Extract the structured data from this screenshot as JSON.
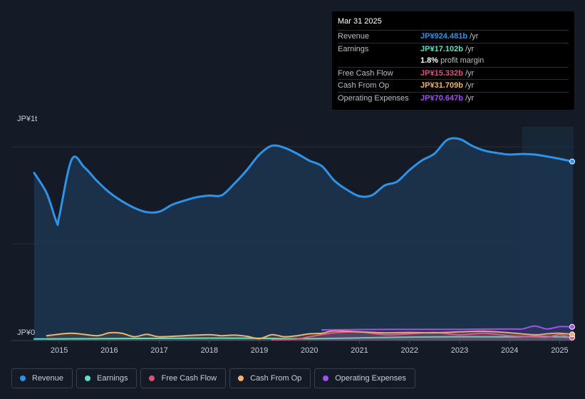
{
  "tooltip": {
    "date": "Mar 31 2025",
    "rows": [
      {
        "label": "Revenue",
        "value": "JP¥924.481b",
        "unit": "/yr",
        "color": "#2e93e8"
      },
      {
        "label": "Earnings",
        "value": "JP¥17.102b",
        "unit": "/yr",
        "color": "#5ce0c9"
      },
      {
        "label": "",
        "value": "1.8%",
        "unit": "profit margin",
        "color": "#ffffff"
      },
      {
        "label": "Free Cash Flow",
        "value": "JP¥15.332b",
        "unit": "/yr",
        "color": "#e0507f"
      },
      {
        "label": "Cash From Op",
        "value": "JP¥31.709b",
        "unit": "/yr",
        "color": "#f0b46a"
      },
      {
        "label": "Operating Expenses",
        "value": "JP¥70.647b",
        "unit": "/yr",
        "color": "#a251e8"
      }
    ]
  },
  "legend": [
    {
      "label": "Revenue",
      "color": "#2e93e8"
    },
    {
      "label": "Earnings",
      "color": "#5ce0c9"
    },
    {
      "label": "Free Cash Flow",
      "color": "#e0507f"
    },
    {
      "label": "Cash From Op",
      "color": "#f0b46a"
    },
    {
      "label": "Operating Expenses",
      "color": "#a251e8"
    }
  ],
  "chart_data": {
    "type": "area",
    "title": "",
    "ylabel_top": "JP¥1t",
    "ylabel_bottom": "JP¥0",
    "ylim": [
      0,
      1000
    ],
    "units": "JP¥ billions",
    "x_ticks": [
      "2015",
      "2016",
      "2017",
      "2018",
      "2019",
      "2020",
      "2021",
      "2022",
      "2023",
      "2024",
      "2025"
    ],
    "x_range": [
      2014.5,
      2025.25
    ],
    "forecast_start": 2024.25,
    "series": [
      {
        "name": "Revenue",
        "color": "#2e93e8",
        "fill": true,
        "x": [
          2014.5,
          2014.75,
          2014.95,
          2015.0,
          2015.25,
          2015.5,
          2015.75,
          2016.0,
          2016.25,
          2016.5,
          2016.75,
          2017.0,
          2017.25,
          2017.5,
          2017.75,
          2018.0,
          2018.25,
          2018.5,
          2018.75,
          2019.0,
          2019.25,
          2019.5,
          2019.75,
          2020.0,
          2020.25,
          2020.5,
          2020.75,
          2021.0,
          2021.25,
          2021.5,
          2021.75,
          2022.0,
          2022.25,
          2022.5,
          2022.75,
          2023.0,
          2023.25,
          2023.5,
          2023.75,
          2024.0,
          2024.25,
          2024.5,
          2024.75,
          2025.0,
          2025.25
        ],
        "y": [
          865,
          760,
          610,
          640,
          935,
          895,
          825,
          765,
          720,
          685,
          663,
          665,
          700,
          722,
          740,
          748,
          750,
          810,
          880,
          960,
          1005,
          995,
          965,
          928,
          900,
          825,
          778,
          745,
          750,
          800,
          820,
          880,
          930,
          965,
          1035,
          1040,
          1005,
          980,
          968,
          960,
          963,
          960,
          950,
          938,
          924
        ]
      },
      {
        "name": "Earnings",
        "color": "#5ce0c9",
        "x": [
          2014.5,
          2016.0,
          2018.0,
          2019.0,
          2020.0,
          2021.0,
          2022.0,
          2023.0,
          2024.0,
          2024.5,
          2025.25
        ],
        "y": [
          8,
          10,
          13,
          12,
          10,
          14,
          18,
          20,
          19,
          22,
          17
        ]
      },
      {
        "name": "Free Cash Flow",
        "color": "#e0507f",
        "x": [
          2019.25,
          2019.75,
          2020.0,
          2020.5,
          2021.0,
          2021.5,
          2022.0,
          2022.5,
          2023.0,
          2023.5,
          2024.0,
          2024.5,
          2024.75,
          2025.0,
          2025.25
        ],
        "y": [
          5,
          8,
          20,
          40,
          45,
          30,
          35,
          42,
          30,
          38,
          25,
          20,
          18,
          30,
          15
        ]
      },
      {
        "name": "Cash From Op",
        "color": "#f0b46a",
        "x": [
          2014.75,
          2015.25,
          2015.75,
          2016.0,
          2016.25,
          2016.5,
          2016.75,
          2017.0,
          2017.5,
          2018.0,
          2018.25,
          2018.5,
          2018.75,
          2019.0,
          2019.25,
          2019.5,
          2019.75,
          2020.0,
          2020.25,
          2020.5,
          2021.0,
          2021.5,
          2022.0,
          2022.5,
          2023.0,
          2023.5,
          2024.0,
          2024.5,
          2024.75,
          2025.0,
          2025.25
        ],
        "y": [
          25,
          38,
          25,
          40,
          38,
          20,
          32,
          20,
          25,
          30,
          25,
          28,
          22,
          10,
          30,
          20,
          25,
          35,
          38,
          50,
          45,
          40,
          42,
          40,
          45,
          48,
          40,
          30,
          35,
          38,
          32
        ]
      },
      {
        "name": "Operating Expenses",
        "color": "#a251e8",
        "x": [
          2020.25,
          2021.0,
          2022.0,
          2023.0,
          2024.0,
          2024.25,
          2024.5,
          2024.75,
          2025.0,
          2025.25
        ],
        "y": [
          55,
          57,
          58,
          58,
          60,
          60,
          75,
          60,
          72,
          71
        ]
      }
    ]
  }
}
